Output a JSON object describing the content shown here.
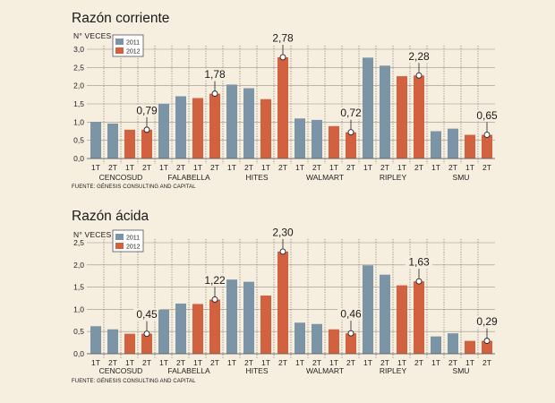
{
  "colors": {
    "y2011": "#7b95a6",
    "y2012": "#d2623f",
    "background": "#f6eedf"
  },
  "chart_data": [
    {
      "type": "bar",
      "title": "Razón corriente",
      "ylabel": "N° VECES",
      "source": "FUENTE: GÉNESIS CONSULTING AND CAPITAL",
      "ylim": [
        0,
        3.0
      ],
      "yticks": [
        "0,0",
        "0,5",
        "1,0",
        "1,5",
        "2,0",
        "2,5",
        "3,0"
      ],
      "legend": [
        "2011",
        "2012"
      ],
      "legend_position": "top-left",
      "companies": [
        "CENCOSUD",
        "FALABELLA",
        "HITES",
        "WALMART",
        "RIPLEY",
        "SMU"
      ],
      "periods": [
        "1T",
        "2T",
        "1T",
        "2T"
      ],
      "series_by_bar": [
        "2011",
        "2011",
        "2012",
        "2012"
      ],
      "values": [
        [
          1.0,
          0.96,
          0.79,
          0.79
        ],
        [
          1.5,
          1.71,
          1.66,
          1.78
        ],
        [
          2.03,
          1.93,
          1.63,
          2.78
        ],
        [
          1.1,
          1.06,
          0.89,
          0.72
        ],
        [
          2.77,
          2.55,
          2.26,
          2.28
        ],
        [
          0.75,
          0.82,
          0.65,
          0.65
        ]
      ],
      "callouts": [
        "0,79",
        "1,78",
        "2,78",
        "0,72",
        "2,28",
        "0,65"
      ]
    },
    {
      "type": "bar",
      "title": "Razón ácida",
      "ylabel": "N° VECES",
      "source": "FUENTE: GÉNESIS CONSULTING AND CAPITAL",
      "ylim": [
        0,
        2.5
      ],
      "yticks": [
        "0,0",
        "0,5",
        "1,0",
        "1,5",
        "2,0",
        "2,5"
      ],
      "legend": [
        "2011",
        "2012"
      ],
      "legend_position": "top-left",
      "companies": [
        "CENCOSUD",
        "FALABELLA",
        "HITES",
        "WALMART",
        "RIPLEY",
        "SMU"
      ],
      "periods": [
        "1T",
        "2T",
        "1T",
        "2T"
      ],
      "series_by_bar": [
        "2011",
        "2011",
        "2012",
        "2012"
      ],
      "values": [
        [
          0.62,
          0.55,
          0.45,
          0.45
        ],
        [
          0.99,
          1.13,
          1.12,
          1.22
        ],
        [
          1.67,
          1.62,
          1.31,
          2.3
        ],
        [
          0.7,
          0.67,
          0.55,
          0.46
        ],
        [
          1.99,
          1.78,
          1.54,
          1.63
        ],
        [
          0.39,
          0.46,
          0.29,
          0.29
        ]
      ],
      "callouts": [
        "0,45",
        "1,22",
        "2,30",
        "0,46",
        "1,63",
        "0,29"
      ]
    }
  ]
}
